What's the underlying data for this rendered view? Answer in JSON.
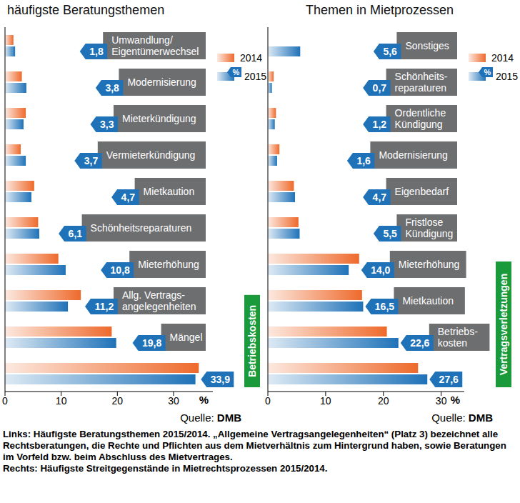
{
  "chart_data": [
    {
      "type": "bar",
      "orientation": "horizontal",
      "title": "häufigste Beratungsthemen",
      "categories": [
        "Umwandlung/\nEigentümerwechsel",
        "Modernisierung",
        "Mieterkündigung",
        "Vermieterkündigung",
        "Mietkaution",
        "Schönheitsreparaturen",
        "Mieterhöhung",
        "Allg. Vertrags-\nangelegenheiten",
        "Mängel",
        "Betriebskosten"
      ],
      "series": [
        {
          "name": "2014",
          "color": "#ee6a2c",
          "values": [
            1.5,
            3.0,
            3.7,
            2.8,
            5.2,
            5.9,
            9.5,
            13.5,
            19.0,
            34.5
          ]
        },
        {
          "name": "2015",
          "color": "#1f72b8",
          "values": [
            1.8,
            3.8,
            3.3,
            3.7,
            4.7,
            6.1,
            10.8,
            11.2,
            19.8,
            33.9
          ],
          "value_labels": [
            "1,8",
            "3,8",
            "3,3",
            "3,7",
            "4,7",
            "6,1",
            "10,8",
            "11,2",
            "19,8",
            "33,9"
          ]
        }
      ],
      "data_labels": true,
      "xlim": [
        0,
        37
      ],
      "xticks": [
        0,
        10,
        20,
        30
      ],
      "xlabel": "%",
      "legend": "upper right",
      "legend_note": "%",
      "tick_labels": "x",
      "grid": false,
      "source": "Quelle: DMB"
    },
    {
      "type": "bar",
      "orientation": "horizontal",
      "title": "Themen in Mietprozessen",
      "categories": [
        "Sonstiges",
        "Schönheits-\nreparaturen",
        "Ordentliche\nKündigung",
        "Modernisierung",
        "Eigenbedarf",
        "Fristlose\nKündigung",
        "Mieterhöhung",
        "Mietkaution",
        "Betriebs-\nkosten",
        "Vertragsverletzungen"
      ],
      "series": [
        {
          "name": "2014",
          "color": "#ee6a2c",
          "values": [
            null,
            1.0,
            1.4,
            2.0,
            4.5,
            5.3,
            15.8,
            16.3,
            20.6,
            26.0
          ]
        },
        {
          "name": "2015",
          "color": "#1f72b8",
          "values": [
            5.6,
            0.7,
            1.2,
            1.6,
            4.7,
            5.5,
            14.0,
            16.5,
            22.6,
            27.6
          ],
          "value_labels": [
            "5,6",
            "0,7",
            "1,2",
            "1,6",
            "4,7",
            "5,5",
            "14,0",
            "16,5",
            "22,6",
            "27,6"
          ]
        }
      ],
      "data_labels": true,
      "xlim": [
        0,
        34
      ],
      "xticks": [
        0,
        10,
        20,
        30
      ],
      "xlabel": "%",
      "legend": "upper right",
      "legend_note": "%",
      "tick_labels": "x",
      "grid": false,
      "source": "Quelle: DMB"
    }
  ],
  "caption": [
    "Links: Häufigste Beratungsthemen 2015/2014. „Allgemeine Vertragsangelegenheiten“ (Platz 3) bezeichnet alle Rechtsberatungen, die Rechte und Pflichten aus dem Mietverhältnis zum Hintergrund haben, sowie Beratungen im Vorfeld bzw. beim Abschluss des Mietvertrages.",
    "Rechts: Häufigste Streitgegenstände in Mietrechtsprozessen 2015/2014."
  ]
}
